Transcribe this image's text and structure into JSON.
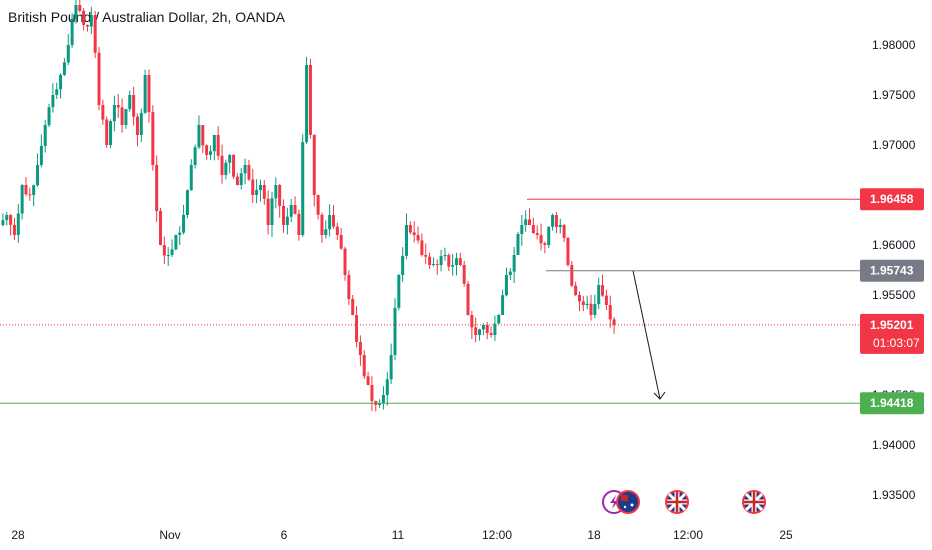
{
  "chart_data": {
    "type": "candlestick",
    "title": "British Pound / Australian Dollar, 2h, OANDA",
    "y_ticks": [
      "1.98000",
      "1.97500",
      "1.97000",
      "1.96000",
      "1.95500",
      "1.94500",
      "1.94000",
      "1.93500"
    ],
    "y_tick_values": [
      1.98,
      1.975,
      1.97,
      1.96,
      1.955,
      1.945,
      1.94,
      1.935
    ],
    "x_ticks": [
      "28",
      "Nov",
      "6",
      "11",
      "12:00",
      "18",
      "12:00",
      "25"
    ],
    "ylim": [
      1.9335,
      1.9845
    ],
    "price_badges": {
      "upper_resistance": "1.96458",
      "entry_level": "1.95743",
      "current_price": "1.95201",
      "countdown": "01:03:07",
      "target": "1.94418"
    },
    "levels": {
      "upper_resistance": 1.96458,
      "entry_level": 1.95743,
      "current_price": 1.95201,
      "target": 1.94418
    },
    "projection": {
      "from": 1.95743,
      "to": 1.9442
    },
    "candles_close_path": [
      1.963,
      1.961,
      1.966,
      1.965,
      1.968,
      1.972,
      1.975,
      1.977,
      1.98,
      1.984,
      1.982,
      1.983,
      1.974,
      1.97,
      1.974,
      1.972,
      1.975,
      1.971,
      1.977,
      1.968,
      1.96,
      1.959,
      1.961,
      1.963,
      1.968,
      1.972,
      1.969,
      1.971,
      1.967,
      1.969,
      1.966,
      1.968,
      1.965,
      1.966,
      1.962,
      1.966,
      1.962,
      1.964,
      1.961,
      1.978,
      1.965,
      1.961,
      1.963,
      1.961,
      1.957,
      1.953,
      1.949,
      1.946,
      1.944,
      1.945,
      1.949,
      1.957,
      1.962,
      1.961,
      1.959,
      1.958,
      1.958,
      1.959,
      1.958,
      1.958,
      1.953,
      1.951,
      1.952,
      1.951,
      1.953,
      1.957,
      1.959,
      1.962,
      1.962,
      1.961,
      1.96,
      1.963,
      1.962,
      1.958,
      1.955,
      1.954,
      1.953,
      1.956,
      1.954,
      1.952
    ],
    "colors": {
      "up": "#089981",
      "down": "#f23645",
      "resistance_line": "#f23645",
      "entry_line": "#787b86",
      "target_line": "#4caf50"
    },
    "event_icons": [
      "lightning-icon",
      "australia-flag-icon",
      "uk-flag-icon",
      "uk-flag-icon"
    ]
  }
}
